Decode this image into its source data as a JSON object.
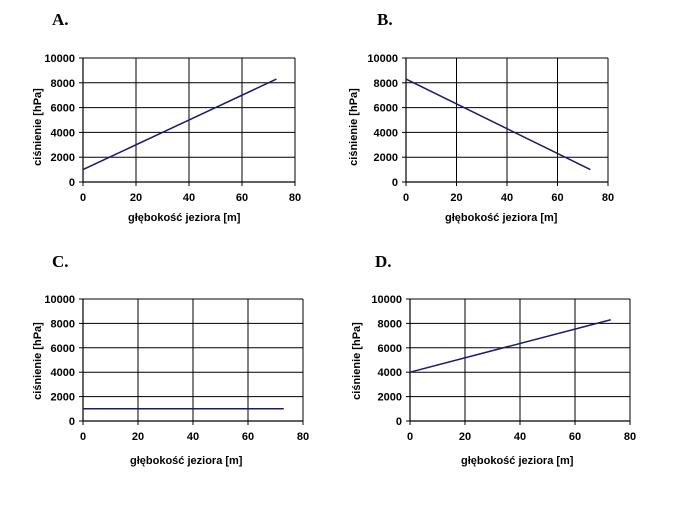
{
  "chart_data": [
    {
      "type": "line",
      "panel_label": "A.",
      "xlabel": "głębokość jeziora [m]",
      "ylabel": "ciśnienie [hPa]",
      "xlim": [
        0,
        80
      ],
      "ylim": [
        0,
        10000
      ],
      "xticks": [
        "0",
        "20",
        "40",
        "60",
        "80"
      ],
      "yticks": [
        "0",
        "2000",
        "4000",
        "6000",
        "8000",
        "10000"
      ],
      "grid": true,
      "line_color": "#1a1a6e",
      "series": [
        {
          "x": [
            0,
            73
          ],
          "y": [
            1000,
            8300
          ]
        }
      ]
    },
    {
      "type": "line",
      "panel_label": "B.",
      "xlabel": "głębokość jeziora [m]",
      "ylabel": "ciśnienie [hPa]",
      "xlim": [
        0,
        80
      ],
      "ylim": [
        0,
        10000
      ],
      "xticks": [
        "0",
        "20",
        "40",
        "60",
        "80"
      ],
      "yticks": [
        "0",
        "2000",
        "4000",
        "6000",
        "8000",
        "10000"
      ],
      "grid": true,
      "line_color": "#1a1a6e",
      "series": [
        {
          "x": [
            0,
            73
          ],
          "y": [
            8300,
            1000
          ]
        }
      ]
    },
    {
      "type": "line",
      "panel_label": "C.",
      "xlabel": "głębokość jeziora [m]",
      "ylabel": "ciśnienie [hPa]",
      "xlim": [
        0,
        80
      ],
      "ylim": [
        0,
        10000
      ],
      "xticks": [
        "0",
        "20",
        "40",
        "60",
        "80"
      ],
      "yticks": [
        "0",
        "2000",
        "4000",
        "6000",
        "8000",
        "10000"
      ],
      "grid": true,
      "line_color": "#1a1a6e",
      "series": [
        {
          "x": [
            0,
            73
          ],
          "y": [
            1000,
            1000
          ]
        }
      ]
    },
    {
      "type": "line",
      "panel_label": "D.",
      "xlabel": "głębokość jeziora [m]",
      "ylabel": "ciśnienie [hPa]",
      "xlim": [
        0,
        80
      ],
      "ylim": [
        0,
        10000
      ],
      "xticks": [
        "0",
        "20",
        "40",
        "60",
        "80"
      ],
      "yticks": [
        "0",
        "2000",
        "4000",
        "6000",
        "8000",
        "10000"
      ],
      "grid": true,
      "line_color": "#1a1a6e",
      "series": [
        {
          "x": [
            0,
            73
          ],
          "y": [
            4000,
            8300
          ]
        }
      ]
    }
  ]
}
